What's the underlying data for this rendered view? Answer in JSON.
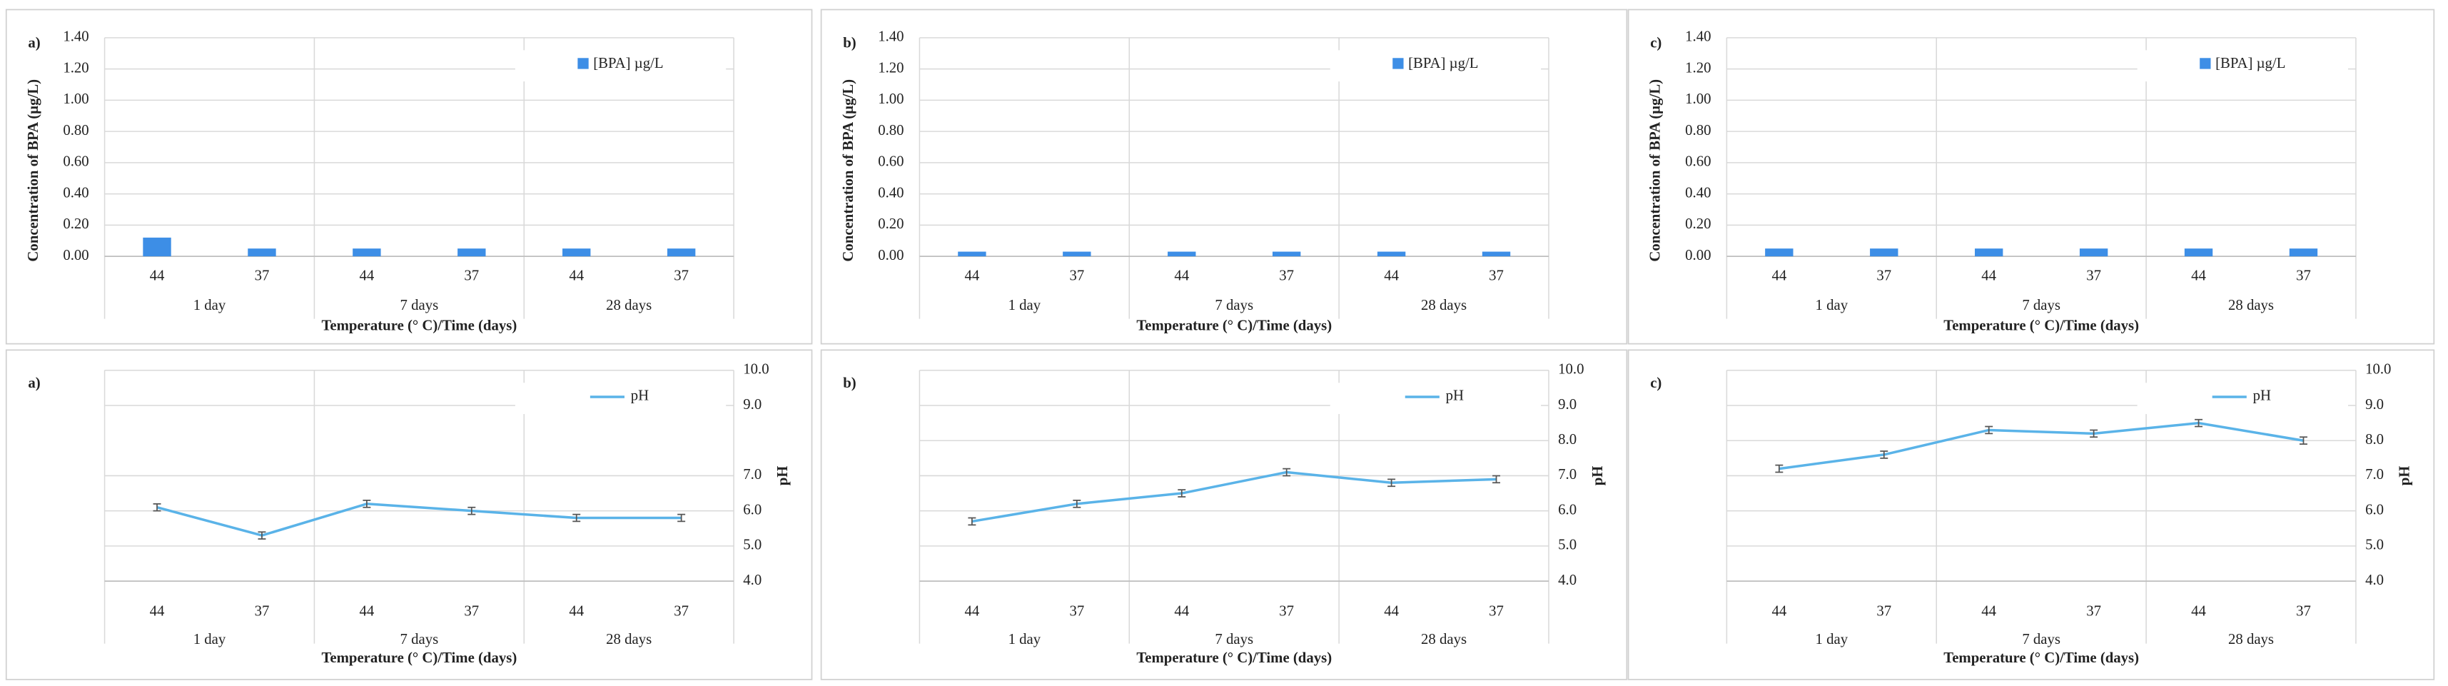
{
  "chart_data": [
    {
      "type": "bar",
      "panel_label": "a)",
      "y_axis_title": "Concentration of BPA (µg/L)",
      "x_axis_title": "Temperature (° C)/Time (days)",
      "categories": [
        "44",
        "37",
        "44",
        "37",
        "44",
        "37"
      ],
      "groups": [
        "1 day",
        "7 days",
        "28 days"
      ],
      "series": [
        {
          "name": "[BPA] µg/L",
          "color": "#3d8ee6",
          "values": [
            0.12,
            0.05,
            0.05,
            0.05,
            0.05,
            0.05
          ]
        }
      ],
      "ylim": [
        0,
        1.4
      ],
      "yticks": [
        {
          "value": 0,
          "label": "0.00"
        },
        {
          "value": 0.2,
          "label": "0.20"
        },
        {
          "value": 0.4,
          "label": "0.40"
        },
        {
          "value": 0.6,
          "label": "0.60"
        },
        {
          "value": 0.8,
          "label": "0.80"
        },
        {
          "value": 1.0,
          "label": "1.00"
        },
        {
          "value": 1.2,
          "label": "1.20"
        },
        {
          "value": 1.4,
          "label": "1.40"
        }
      ],
      "grid": true
    },
    {
      "type": "bar",
      "panel_label": "b)",
      "y_axis_title": "Concentration of BPA (µg/L)",
      "x_axis_title": "Temperature (° C)/Time (days)",
      "categories": [
        "44",
        "37",
        "44",
        "37",
        "44",
        "37"
      ],
      "groups": [
        "1 day",
        "7 days",
        "28 days"
      ],
      "series": [
        {
          "name": "[BPA] µg/L",
          "color": "#3d8ee6",
          "values": [
            0.03,
            0.03,
            0.03,
            0.03,
            0.03,
            0.03
          ]
        }
      ],
      "ylim": [
        0,
        1.4
      ],
      "yticks": [
        {
          "value": 0,
          "label": "0.00"
        },
        {
          "value": 0.2,
          "label": "0.20"
        },
        {
          "value": 0.4,
          "label": "0.40"
        },
        {
          "value": 0.6,
          "label": "0.60"
        },
        {
          "value": 0.8,
          "label": "0.80"
        },
        {
          "value": 1.0,
          "label": "1.00"
        },
        {
          "value": 1.2,
          "label": "1.20"
        },
        {
          "value": 1.4,
          "label": "1.40"
        }
      ],
      "grid": true
    },
    {
      "type": "bar",
      "panel_label": "c)",
      "y_axis_title": "Concentration of BPA (µg/L)",
      "x_axis_title": "Temperature (° C)/Time (days)",
      "categories": [
        "44",
        "37",
        "44",
        "37",
        "44",
        "37"
      ],
      "groups": [
        "1 day",
        "7 days",
        "28 days"
      ],
      "series": [
        {
          "name": "[BPA] µg/L",
          "color": "#3d8ee6",
          "values": [
            0.05,
            0.05,
            0.05,
            0.05,
            0.05,
            0.05
          ]
        }
      ],
      "ylim": [
        0,
        1.4
      ],
      "yticks": [
        {
          "value": 0,
          "label": "0.00"
        },
        {
          "value": 0.2,
          "label": "0.20"
        },
        {
          "value": 0.4,
          "label": "0.40"
        },
        {
          "value": 0.6,
          "label": "0.60"
        },
        {
          "value": 0.8,
          "label": "0.80"
        },
        {
          "value": 1.0,
          "label": "1.00"
        },
        {
          "value": 1.2,
          "label": "1.20"
        },
        {
          "value": 1.4,
          "label": "1.40"
        }
      ],
      "grid": true
    },
    {
      "type": "line",
      "panel_label": "a)",
      "y_axis_title": "pH",
      "x_axis_title": "Temperature (° C)/Time (days)",
      "categories": [
        "44",
        "37",
        "44",
        "37",
        "44",
        "37"
      ],
      "groups": [
        "1 day",
        "7 days",
        "28 days"
      ],
      "series": [
        {
          "name": "pH",
          "color": "#5ab3e8",
          "values": [
            6.1,
            5.3,
            6.2,
            6.0,
            5.8,
            5.8
          ],
          "errors": [
            0.1,
            0.1,
            0.1,
            0.1,
            0.1,
            0.1
          ]
        }
      ],
      "ylim": [
        4,
        10
      ],
      "yticks": [
        {
          "value": 4,
          "label": "4.0"
        },
        {
          "value": 5,
          "label": "5.0"
        },
        {
          "value": 6,
          "label": "6.0"
        },
        {
          "value": 7,
          "label": "7.0"
        },
        {
          "value": 9,
          "label": "9.0"
        },
        {
          "value": 10,
          "label": "10.0"
        }
      ],
      "grid": true
    },
    {
      "type": "line",
      "panel_label": "b)",
      "y_axis_title": "pH",
      "x_axis_title": "Temperature (° C)/Time (days)",
      "categories": [
        "44",
        "37",
        "44",
        "37",
        "44",
        "37"
      ],
      "groups": [
        "1 day",
        "7 days",
        "28 days"
      ],
      "series": [
        {
          "name": "pH",
          "color": "#5ab3e8",
          "values": [
            5.7,
            6.2,
            6.5,
            7.1,
            6.8,
            6.9
          ],
          "errors": [
            0.1,
            0.1,
            0.1,
            0.1,
            0.1,
            0.1
          ]
        }
      ],
      "ylim": [
        4,
        10
      ],
      "yticks": [
        {
          "value": 4,
          "label": "4.0"
        },
        {
          "value": 5,
          "label": "5.0"
        },
        {
          "value": 6,
          "label": "6.0"
        },
        {
          "value": 7,
          "label": "7.0"
        },
        {
          "value": 8,
          "label": "8.0"
        },
        {
          "value": 9,
          "label": "9.0"
        },
        {
          "value": 10,
          "label": "10.0"
        }
      ],
      "grid": true
    },
    {
      "type": "line",
      "panel_label": "c)",
      "y_axis_title": "pH",
      "x_axis_title": "Temperature (° C)/Time (days)",
      "categories": [
        "44",
        "37",
        "44",
        "37",
        "44",
        "37"
      ],
      "groups": [
        "1 day",
        "7 days",
        "28 days"
      ],
      "series": [
        {
          "name": "pH",
          "color": "#5ab3e8",
          "values": [
            7.2,
            7.6,
            8.3,
            8.2,
            8.5,
            8.0
          ],
          "errors": [
            0.1,
            0.1,
            0.1,
            0.1,
            0.1,
            0.1
          ]
        }
      ],
      "ylim": [
        4,
        10
      ],
      "yticks": [
        {
          "value": 4,
          "label": "4.0"
        },
        {
          "value": 5,
          "label": "5.0"
        },
        {
          "value": 6,
          "label": "6.0"
        },
        {
          "value": 7,
          "label": "7.0"
        },
        {
          "value": 8,
          "label": "8.0"
        },
        {
          "value": 9,
          "label": "9.0"
        },
        {
          "value": 10,
          "label": "10.0"
        }
      ],
      "grid": true
    }
  ]
}
